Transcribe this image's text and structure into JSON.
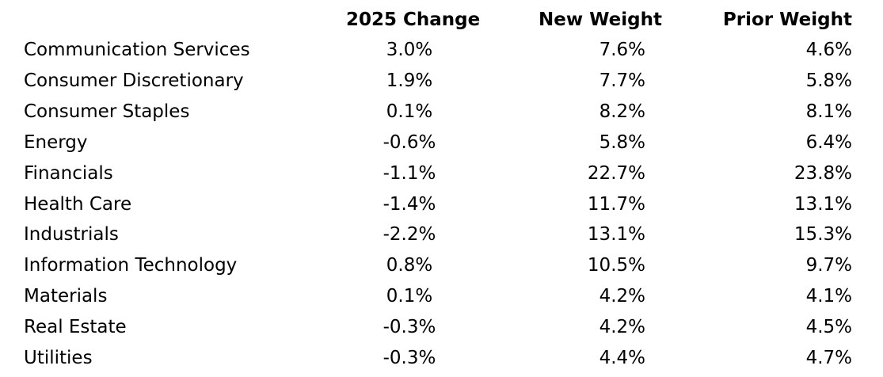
{
  "chart_data": {
    "type": "table",
    "columns": [
      "",
      "2025 Change",
      "New Weight",
      "Prior Weight"
    ],
    "rows": [
      {
        "sector": "Communication Services",
        "change": "3.0%",
        "new_weight": "7.6%",
        "prior_weight": "4.6%"
      },
      {
        "sector": "Consumer Discretionary",
        "change": "1.9%",
        "new_weight": "7.7%",
        "prior_weight": "5.8%"
      },
      {
        "sector": "Consumer Staples",
        "change": "0.1%",
        "new_weight": "8.2%",
        "prior_weight": "8.1%"
      },
      {
        "sector": "Energy",
        "change": "-0.6%",
        "new_weight": "5.8%",
        "prior_weight": "6.4%"
      },
      {
        "sector": "Financials",
        "change": "-1.1%",
        "new_weight": "22.7%",
        "prior_weight": "23.8%"
      },
      {
        "sector": "Health Care",
        "change": "-1.4%",
        "new_weight": "11.7%",
        "prior_weight": "13.1%"
      },
      {
        "sector": "Industrials",
        "change": "-2.2%",
        "new_weight": "13.1%",
        "prior_weight": "15.3%"
      },
      {
        "sector": "Information Technology",
        "change": "0.8%",
        "new_weight": "10.5%",
        "prior_weight": "9.7%"
      },
      {
        "sector": "Materials",
        "change": "0.1%",
        "new_weight": "4.2%",
        "prior_weight": "4.1%"
      },
      {
        "sector": "Real Estate",
        "change": "-0.3%",
        "new_weight": "4.2%",
        "prior_weight": "4.5%"
      },
      {
        "sector": "Utilities",
        "change": "-0.3%",
        "new_weight": "4.4%",
        "prior_weight": "4.7%"
      }
    ]
  }
}
